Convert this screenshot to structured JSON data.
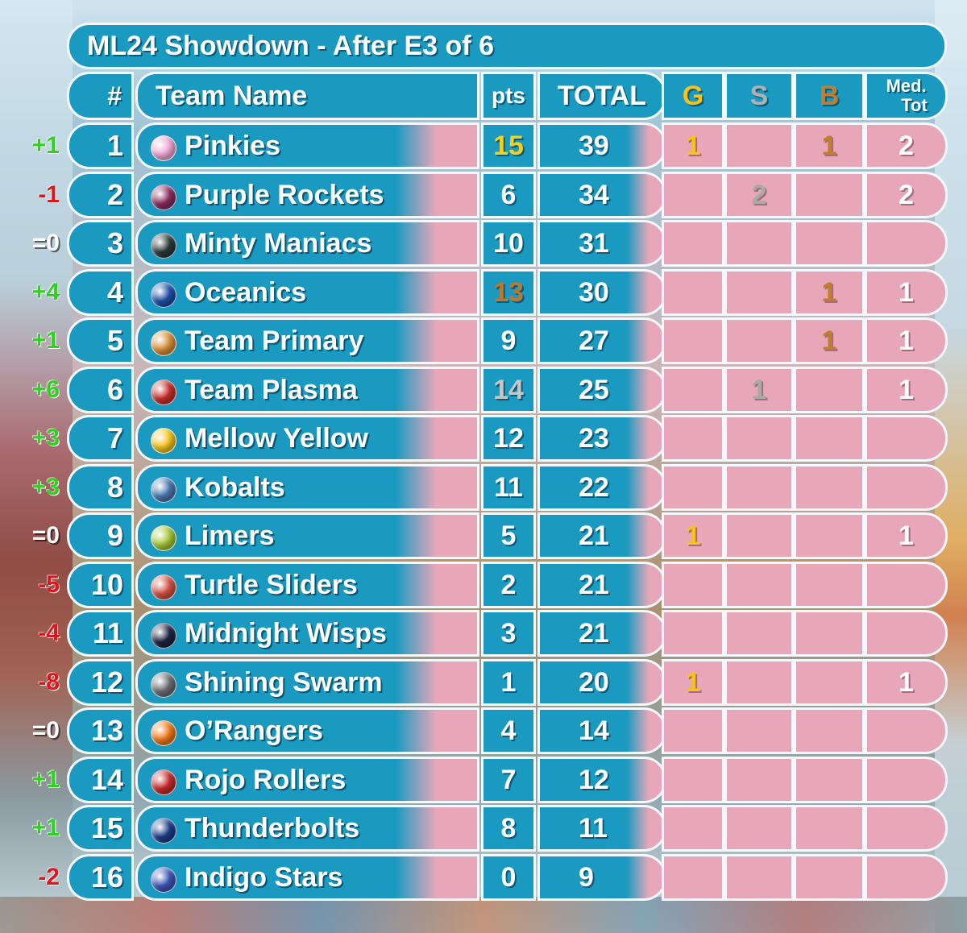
{
  "title": "ML24 Showdown - After E3 of 6",
  "headers": {
    "rank": "#",
    "team": "Team Name",
    "pts": "pts",
    "total": "TOTAL",
    "gold": "G",
    "silver": "S",
    "bronze": "B",
    "med_line1": "Med.",
    "med_line2": "Tot"
  },
  "colors": {
    "panel_blue": "#1a9ac0",
    "panel_pink": "#e8a7b8",
    "gold": "#f7c21c",
    "silver": "#a9a9a9",
    "bronze": "#c47e2a",
    "move_up": "#2fd022",
    "move_down": "#e0141c"
  },
  "rows": [
    {
      "move": "+1",
      "rank": "1",
      "team": "Pinkies",
      "pts": "15",
      "pts_medal": "gold",
      "total": "39",
      "g": "1",
      "s": "",
      "b": "1",
      "med": "2",
      "marble": "#f3a9d6"
    },
    {
      "move": "-1",
      "rank": "2",
      "team": "Purple Rockets",
      "pts": "6",
      "pts_medal": "",
      "total": "34",
      "g": "",
      "s": "2",
      "b": "",
      "med": "2",
      "marble": "#8a2d5e"
    },
    {
      "move": "=0",
      "rank": "3",
      "team": "Minty Maniacs",
      "pts": "10",
      "pts_medal": "",
      "total": "31",
      "g": "",
      "s": "",
      "b": "",
      "med": "",
      "marble": "#2c3a3a"
    },
    {
      "move": "+4",
      "rank": "4",
      "team": "Oceanics",
      "pts": "13",
      "pts_medal": "bronze",
      "total": "30",
      "g": "",
      "s": "",
      "b": "1",
      "med": "1",
      "marble": "#1f4fa8"
    },
    {
      "move": "+1",
      "rank": "5",
      "team": "Team Primary",
      "pts": "9",
      "pts_medal": "",
      "total": "27",
      "g": "",
      "s": "",
      "b": "1",
      "med": "1",
      "marble": "#d9913a"
    },
    {
      "move": "+6",
      "rank": "6",
      "team": "Team Plasma",
      "pts": "14",
      "pts_medal": "silver",
      "total": "25",
      "g": "",
      "s": "1",
      "b": "",
      "med": "1",
      "marble": "#c8302c"
    },
    {
      "move": "+3",
      "rank": "7",
      "team": "Mellow Yellow",
      "pts": "12",
      "pts_medal": "",
      "total": "23",
      "g": "",
      "s": "",
      "b": "",
      "med": "",
      "marble": "#f3c520"
    },
    {
      "move": "+3",
      "rank": "8",
      "team": "Kobalts",
      "pts": "11",
      "pts_medal": "",
      "total": "22",
      "g": "",
      "s": "",
      "b": "",
      "med": "",
      "marble": "#4b79b0"
    },
    {
      "move": "=0",
      "rank": "9",
      "team": "Limers",
      "pts": "5",
      "pts_medal": "",
      "total": "21",
      "g": "1",
      "s": "",
      "b": "",
      "med": "1",
      "marble": "#a7c93a"
    },
    {
      "move": "-5",
      "rank": "10",
      "team": "Turtle Sliders",
      "pts": "2",
      "pts_medal": "",
      "total": "21",
      "g": "",
      "s": "",
      "b": "",
      "med": "",
      "marble": "#d45345"
    },
    {
      "move": "-4",
      "rank": "11",
      "team": "Midnight Wisps",
      "pts": "3",
      "pts_medal": "",
      "total": "21",
      "g": "",
      "s": "",
      "b": "",
      "med": "",
      "marble": "#1d2340"
    },
    {
      "move": "-8",
      "rank": "12",
      "team": "Shining Swarm",
      "pts": "1",
      "pts_medal": "",
      "total": "20",
      "g": "1",
      "s": "",
      "b": "",
      "med": "1",
      "marble": "#6b6f74"
    },
    {
      "move": "=0",
      "rank": "13",
      "team": "O’Rangers",
      "pts": "4",
      "pts_medal": "",
      "total": "14",
      "g": "",
      "s": "",
      "b": "",
      "med": "",
      "marble": "#f07a1c"
    },
    {
      "move": "+1",
      "rank": "14",
      "team": "Rojo Rollers",
      "pts": "7",
      "pts_medal": "",
      "total": "12",
      "g": "",
      "s": "",
      "b": "",
      "med": "",
      "marble": "#c72a2a"
    },
    {
      "move": "+1",
      "rank": "15",
      "team": "Thunderbolts",
      "pts": "8",
      "pts_medal": "",
      "total": "11",
      "g": "",
      "s": "",
      "b": "",
      "med": "",
      "marble": "#1e3e8a"
    },
    {
      "move": "-2",
      "rank": "16",
      "team": "Indigo Stars",
      "pts": "0",
      "pts_medal": "",
      "total": "9",
      "g": "",
      "s": "",
      "b": "",
      "med": "",
      "marble": "#3f57b8"
    }
  ]
}
